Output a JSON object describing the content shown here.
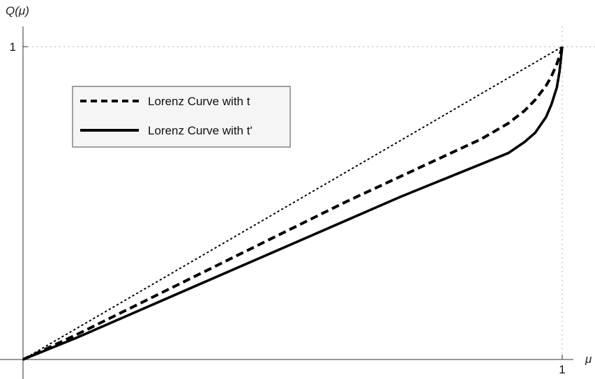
{
  "chart_data": {
    "type": "line",
    "title": "",
    "xlabel": "μ",
    "ylabel": "Q(μ)",
    "xlim": [
      0,
      1.03
    ],
    "ylim": [
      0,
      1.07
    ],
    "x_ticks": [
      {
        "value": 1,
        "label": "1"
      }
    ],
    "y_ticks": [
      {
        "value": 1,
        "label": "1"
      }
    ],
    "grid": "dotted reference lines at x=1 and y=1",
    "legend_position": "top-left",
    "series": [
      {
        "name": "Lorenz Curve with t",
        "style": "dashed",
        "color": "#000000",
        "x": [
          0,
          0.1,
          0.2,
          0.3,
          0.4,
          0.5,
          0.6,
          0.7,
          0.8,
          0.85,
          0.9,
          0.93,
          0.95,
          0.97,
          0.98,
          0.99,
          0.995,
          1.0
        ],
        "y": [
          0,
          0.08,
          0.165,
          0.25,
          0.335,
          0.42,
          0.505,
          0.585,
          0.665,
          0.705,
          0.755,
          0.795,
          0.83,
          0.875,
          0.905,
          0.945,
          0.97,
          1.0
        ]
      },
      {
        "name": "Lorenz Curve with t'",
        "style": "solid",
        "color": "#000000",
        "x": [
          0,
          0.1,
          0.2,
          0.3,
          0.4,
          0.5,
          0.6,
          0.7,
          0.8,
          0.85,
          0.9,
          0.93,
          0.95,
          0.97,
          0.98,
          0.99,
          0.995,
          1.0
        ],
        "y": [
          0,
          0.07,
          0.145,
          0.22,
          0.295,
          0.37,
          0.445,
          0.52,
          0.59,
          0.625,
          0.66,
          0.695,
          0.725,
          0.775,
          0.815,
          0.87,
          0.92,
          1.0
        ]
      },
      {
        "style": "dotted",
        "color": "#000000",
        "x": [
          0,
          1
        ],
        "y": [
          0,
          1
        ]
      }
    ]
  }
}
